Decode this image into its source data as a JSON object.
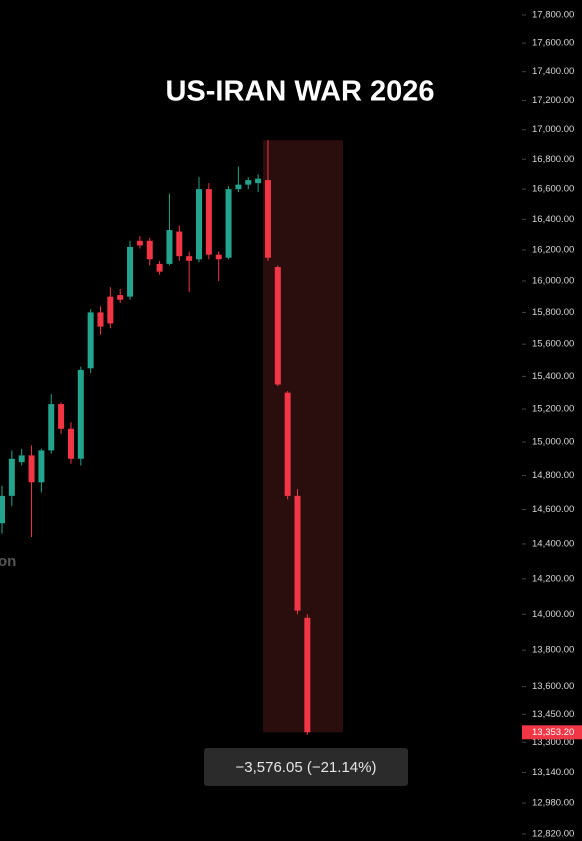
{
  "chart_data": {
    "type": "candlestick",
    "title": "US-IRAN WAR 2026",
    "watermark": "on",
    "annotation": "−3,576.05 (−21.14%)",
    "log_scale": true,
    "up_color": "#22a48e",
    "down_color": "#f23645",
    "open": [
      14520,
      14680,
      14880,
      14920,
      14760,
      14950,
      15230,
      15080,
      14900,
      15450,
      15800,
      15900,
      15910,
      15900,
      16260,
      16260,
      16110,
      16110,
      16320,
      16160,
      16140,
      16600,
      16170,
      16150,
      16600,
      16630,
      16640,
      16660,
      16090,
      15300,
      14680,
      13980
    ],
    "high": [
      14740,
      14950,
      14960,
      14980,
      14960,
      15290,
      15240,
      15120,
      15460,
      15820,
      15840,
      15960,
      15950,
      16260,
      16290,
      16280,
      16130,
      16570,
      16360,
      16190,
      16680,
      16640,
      16190,
      16620,
      16750,
      16680,
      16700,
      16929.25,
      16100,
      15310,
      14720,
      14000
    ],
    "low": [
      14460,
      14620,
      14860,
      14440,
      14700,
      14930,
      15050,
      14870,
      14860,
      15420,
      15660,
      15700,
      15860,
      15880,
      16210,
      16100,
      16040,
      16100,
      16130,
      15930,
      16120,
      16140,
      16000,
      16140,
      16580,
      16600,
      16580,
      16130,
      15340,
      14660,
      14000,
      13340
    ],
    "close": [
      14680,
      14900,
      14920,
      14760,
      14950,
      15230,
      15080,
      14900,
      15440,
      15800,
      15710,
      15730,
      15880,
      16220,
      16230,
      16140,
      16060,
      16330,
      16160,
      16130,
      16600,
      16170,
      16140,
      16600,
      16630,
      16660,
      16670,
      16150,
      15350,
      14680,
      14020,
      13353.2
    ],
    "last_price": {
      "value": 13353.2,
      "label": "13,353.20"
    },
    "ylim": [
      12784,
      17907
    ],
    "yticks": [
      {
        "value": 17800,
        "label": "17,800.00"
      },
      {
        "value": 17600,
        "label": "17,600.00"
      },
      {
        "value": 17400,
        "label": "17,400.00"
      },
      {
        "value": 17200,
        "label": "17,200.00"
      },
      {
        "value": 17000,
        "label": "17,000.00"
      },
      {
        "value": 16800,
        "label": "16,800.00"
      },
      {
        "value": 16600,
        "label": "16,600.00"
      },
      {
        "value": 16400,
        "label": "16,400.00"
      },
      {
        "value": 16200,
        "label": "16,200.00"
      },
      {
        "value": 16000,
        "label": "16,000.00"
      },
      {
        "value": 15800,
        "label": "15,800.00"
      },
      {
        "value": 15600,
        "label": "15,600.00"
      },
      {
        "value": 15400,
        "label": "15,400.00"
      },
      {
        "value": 15200,
        "label": "15,200.00"
      },
      {
        "value": 15000,
        "label": "15,000.00"
      },
      {
        "value": 14800,
        "label": "14,800.00"
      },
      {
        "value": 14600,
        "label": "14,600.00"
      },
      {
        "value": 14400,
        "label": "14,400.00"
      },
      {
        "value": 14200,
        "label": "14,200.00"
      },
      {
        "value": 14000,
        "label": "14,000.00"
      },
      {
        "value": 13800,
        "label": "13,800.00"
      },
      {
        "value": 13600,
        "label": "13,600.00"
      },
      {
        "value": 13450,
        "label": "13,450.00"
      },
      {
        "value": 13300,
        "label": "13,300.00"
      },
      {
        "value": 13140,
        "label": "13,140.00"
      },
      {
        "value": 12980,
        "label": "12,980.00"
      },
      {
        "value": 12820,
        "label": "12,820.00"
      }
    ]
  }
}
